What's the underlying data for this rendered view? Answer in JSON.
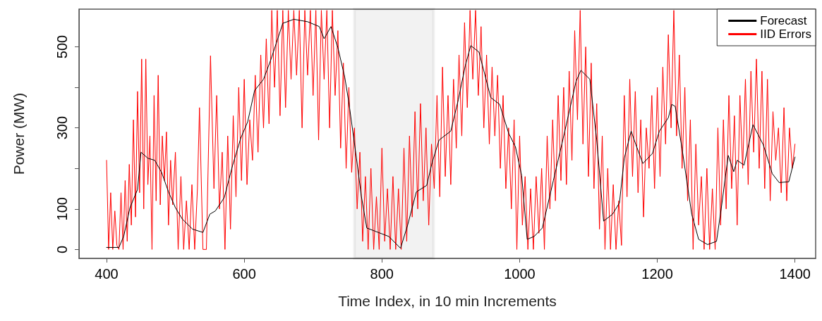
{
  "chart_data": {
    "type": "line",
    "xlabel": "Time Index, in 10 min Increments",
    "ylabel": "Power (MW)",
    "xlim": [
      360,
      1430
    ],
    "xticks": [
      400,
      600,
      800,
      1000,
      1200,
      1400
    ],
    "ylim": [
      -22,
      593
    ],
    "yticks": [
      0,
      100,
      {
        "value": 200,
        "label": null
      },
      300,
      {
        "value": 400,
        "label": null
      },
      500
    ],
    "grid": false,
    "legend": "top right",
    "marker": "none",
    "line_style": "solid",
    "bands": [
      {
        "axis": "x",
        "from": 760,
        "to": 875,
        "color": "#000000"
      }
    ],
    "series": [
      {
        "name": "IID Errors",
        "color": "#ff0000",
        "x": [
          400,
          403,
          406,
          409,
          412,
          415,
          418,
          421,
          424,
          427,
          430,
          433,
          436,
          439,
          442,
          445,
          448,
          451,
          454,
          457,
          460,
          463,
          466,
          469,
          472,
          475,
          478,
          481,
          484,
          487,
          490,
          493,
          496,
          500,
          504,
          508,
          512,
          516,
          520,
          524,
          528,
          532,
          535,
          540,
          545,
          551,
          556,
          560,
          564,
          568,
          572,
          576,
          580,
          584,
          588,
          592,
          596,
          600,
          604,
          608,
          612,
          616,
          620,
          624,
          628,
          632,
          636,
          640,
          644,
          648,
          652,
          656,
          660,
          664,
          668,
          672,
          676,
          680,
          684,
          688,
          692,
          696,
          700,
          704,
          708,
          712,
          716,
          720,
          724,
          728,
          732,
          736,
          740,
          744,
          748,
          752,
          756,
          760,
          764,
          768,
          772,
          776,
          780,
          784,
          788,
          792,
          796,
          800,
          804,
          808,
          812,
          816,
          820,
          824,
          828,
          832,
          836,
          840,
          844,
          848,
          852,
          856,
          860,
          864,
          868,
          872,
          876,
          880,
          884,
          888,
          892,
          896,
          900,
          904,
          908,
          912,
          916,
          920,
          924,
          928,
          932,
          936,
          940,
          944,
          948,
          952,
          956,
          960,
          964,
          968,
          972,
          976,
          980,
          984,
          988,
          992,
          996,
          1000,
          1004,
          1008,
          1012,
          1016,
          1020,
          1024,
          1028,
          1032,
          1036,
          1040,
          1044,
          1048,
          1052,
          1056,
          1060,
          1064,
          1068,
          1072,
          1076,
          1080,
          1084,
          1088,
          1092,
          1096,
          1100,
          1104,
          1108,
          1112,
          1116,
          1120,
          1124,
          1128,
          1132,
          1136,
          1140,
          1144,
          1148,
          1152,
          1156,
          1160,
          1164,
          1168,
          1172,
          1176,
          1180,
          1184,
          1188,
          1192,
          1196,
          1200,
          1204,
          1208,
          1212,
          1216,
          1220,
          1224,
          1228,
          1232,
          1236,
          1240,
          1244,
          1248,
          1252,
          1256,
          1260,
          1264,
          1268,
          1272,
          1276,
          1280,
          1284,
          1288,
          1292,
          1296,
          1300,
          1304,
          1308,
          1312,
          1316,
          1320,
          1324,
          1328,
          1332,
          1336,
          1340,
          1344,
          1348,
          1352,
          1356,
          1360,
          1364,
          1368,
          1372,
          1376,
          1380,
          1384,
          1388,
          1392,
          1396,
          1400
        ],
        "values": [
          220,
          0,
          140,
          0,
          95,
          10,
          0,
          140,
          0,
          170,
          20,
          210,
          60,
          320,
          80,
          390,
          140,
          470,
          100,
          470,
          160,
          280,
          0,
          380,
          120,
          430,
          110,
          280,
          170,
          290,
          60,
          220,
          110,
          240,
          0,
          180,
          0,
          120,
          0,
          160,
          0,
          150,
          350,
          0,
          0,
          478,
          150,
          380,
          100,
          240,
          0,
          280,
          50,
          330,
          130,
          400,
          170,
          420,
          160,
          320,
          220,
          430,
          240,
          480,
          300,
          520,
          310,
          590,
          400,
          590,
          330,
          590,
          350,
          590,
          420,
          590,
          430,
          590,
          300,
          590,
          430,
          590,
          380,
          590,
          270,
          590,
          420,
          590,
          300,
          590,
          380,
          540,
          250,
          460,
          200,
          400,
          190,
          300,
          100,
          240,
          20,
          180,
          0,
          200,
          0,
          130,
          0,
          250,
          20,
          150,
          0,
          180,
          0,
          150,
          0,
          250,
          20,
          280,
          80,
          340,
          100,
          360,
          120,
          300,
          60,
          260,
          150,
          380,
          130,
          450,
          180,
          380,
          160,
          420,
          250,
          480,
          280,
          560,
          350,
          590,
          420,
          590,
          380,
          550,
          300,
          480,
          260,
          450,
          280,
          430,
          200,
          380,
          150,
          300,
          100,
          320,
          0,
          280,
          60,
          180,
          0,
          150,
          0,
          180,
          40,
          200,
          0,
          280,
          100,
          320,
          120,
          380,
          170,
          400,
          160,
          440,
          220,
          540,
          320,
          590,
          260,
          500,
          180,
          460,
          150,
          360,
          50,
          280,
          0,
          200,
          0,
          160,
          0,
          120,
          10,
          380,
          130,
          420,
          180,
          390,
          140,
          320,
          80,
          300,
          200,
          380,
          150,
          400,
          180,
          450,
          260,
          530,
          300,
          590,
          280,
          480,
          200,
          400,
          120,
          320,
          0,
          260,
          60,
          180,
          0,
          200,
          0,
          150,
          0,
          300,
          60,
          320,
          100,
          380,
          150,
          330,
          60,
          380,
          200,
          420,
          160,
          440,
          240,
          470,
          200,
          440,
          150,
          420,
          120,
          340,
          220,
          300,
          140,
          350,
          120,
          300,
          200,
          260
        ]
      },
      {
        "name": "Forecast",
        "color": "#000000",
        "x": [
          400,
          418,
          425,
          434,
          445,
          450,
          460,
          470,
          480,
          490,
          500,
          510,
          525,
          540,
          550,
          558,
          571,
          583,
          595,
          605,
          615,
          628,
          639,
          656,
          672,
          692,
          709,
          716,
          726,
          736,
          746,
          752,
          763,
          770,
          778,
          790,
          810,
          827,
          837,
          850,
          865,
          873,
          883,
          900,
          911,
          921,
          929,
          941,
          958,
          971,
          984,
          994,
          1003,
          1011,
          1021,
          1033,
          1049,
          1065,
          1082,
          1089,
          1102,
          1112,
          1122,
          1135,
          1145,
          1152,
          1162,
          1169,
          1179,
          1193,
          1203,
          1216,
          1221,
          1226,
          1236,
          1250,
          1260,
          1273,
          1286,
          1293,
          1303,
          1311,
          1316,
          1326,
          1339,
          1354,
          1367,
          1377,
          1391,
          1400
        ],
        "values": [
          5,
          5,
          33,
          103,
          148,
          240,
          225,
          220,
          190,
          142,
          103,
          75,
          50,
          42,
          87,
          95,
          128,
          207,
          275,
          315,
          392,
          420,
          470,
          558,
          568,
          562,
          550,
          520,
          550,
          498,
          425,
          362,
          225,
          132,
          53,
          45,
          32,
          3,
          58,
          142,
          158,
          215,
          270,
          292,
          370,
          453,
          503,
          487,
          375,
          358,
          287,
          253,
          182,
          25,
          32,
          53,
          170,
          287,
          415,
          442,
          420,
          270,
          70,
          87,
          115,
          225,
          292,
          258,
          212,
          237,
          292,
          325,
          358,
          353,
          248,
          87,
          25,
          12,
          20,
          103,
          232,
          192,
          220,
          208,
          308,
          258,
          187,
          165,
          167,
          228
        ]
      }
    ]
  }
}
